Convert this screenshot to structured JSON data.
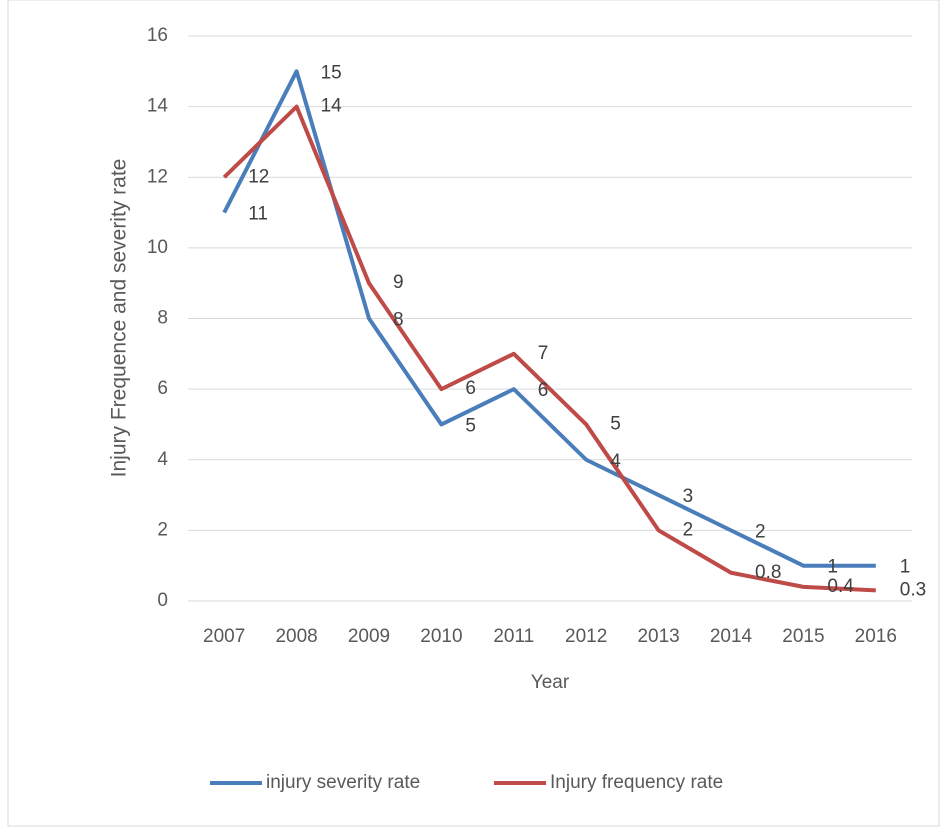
{
  "chart_data": {
    "type": "line",
    "x_label": "Year",
    "y_label": "Injury Frequence and severity rate",
    "categories": [
      "2007",
      "2008",
      "2009",
      "2010",
      "2011",
      "2012",
      "2013",
      "2014",
      "2015",
      "2016"
    ],
    "series": [
      {
        "name": "injury severity rate",
        "color": "#4a7ebb",
        "values": [
          11,
          15,
          8,
          5,
          6,
          4,
          3,
          2,
          1,
          1
        ]
      },
      {
        "name": "Injury frequency rate",
        "color": "#be4b48",
        "values": [
          12,
          14,
          9,
          6,
          7,
          5,
          2,
          0.8,
          0.4,
          0.3
        ]
      }
    ],
    "ylim": [
      0,
      16
    ],
    "yticks": [
      0,
      2,
      4,
      6,
      8,
      10,
      12,
      14,
      16
    ],
    "grid": true,
    "legend": "bottom"
  }
}
